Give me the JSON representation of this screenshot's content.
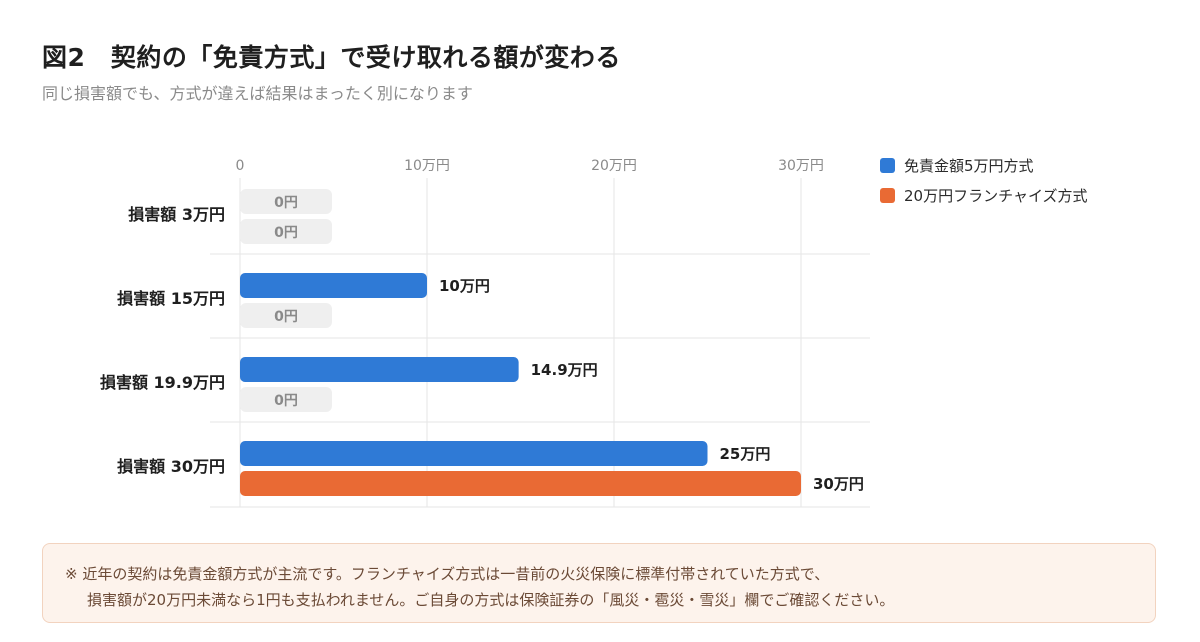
{
  "title": "図2　契約の「免責方式」で受け取れる額が変わる",
  "subtitle": "同じ損害額でも、方式が違えば結果はまったく別になります",
  "colors": {
    "deductible": "#2f7ad6",
    "franchise": "#e96a34",
    "zero_pill": "#efefef",
    "grid": "#e6e6e6"
  },
  "chart_data": {
    "type": "bar",
    "orientation": "horizontal",
    "categories": [
      "損害額 3万円",
      "損害額 15万円",
      "損害額 19.9万円",
      "損害額 30万円"
    ],
    "xlim": [
      0,
      30
    ],
    "x_ticks": [
      {
        "value": 0,
        "label": "0"
      },
      {
        "value": 10,
        "label": "10万円"
      },
      {
        "value": 20,
        "label": "20万円"
      },
      {
        "value": 30,
        "label": "30万円"
      }
    ],
    "legend_position": "top-right",
    "grid": true,
    "series": [
      {
        "name": "免責金額5万円方式",
        "color": "#2f7ad6",
        "values": [
          0,
          10,
          14.9,
          25
        ],
        "labels": [
          "0円",
          "10万円",
          "14.9万円",
          "25万円"
        ]
      },
      {
        "name": "20万円フランチャイズ方式",
        "color": "#e96a34",
        "values": [
          0,
          0,
          0,
          30
        ],
        "labels": [
          "0円",
          "0円",
          "0円",
          "30万円"
        ]
      }
    ]
  },
  "note": {
    "line1": "※ 近年の契約は免責金額方式が主流です。フランチャイズ方式は一昔前の火災保険に標準付帯されていた方式で、",
    "line2": "損害額が20万円未満なら1円も支払われません。ご自身の方式は保険証券の「風災・雹災・雪災」欄でご確認ください。"
  }
}
